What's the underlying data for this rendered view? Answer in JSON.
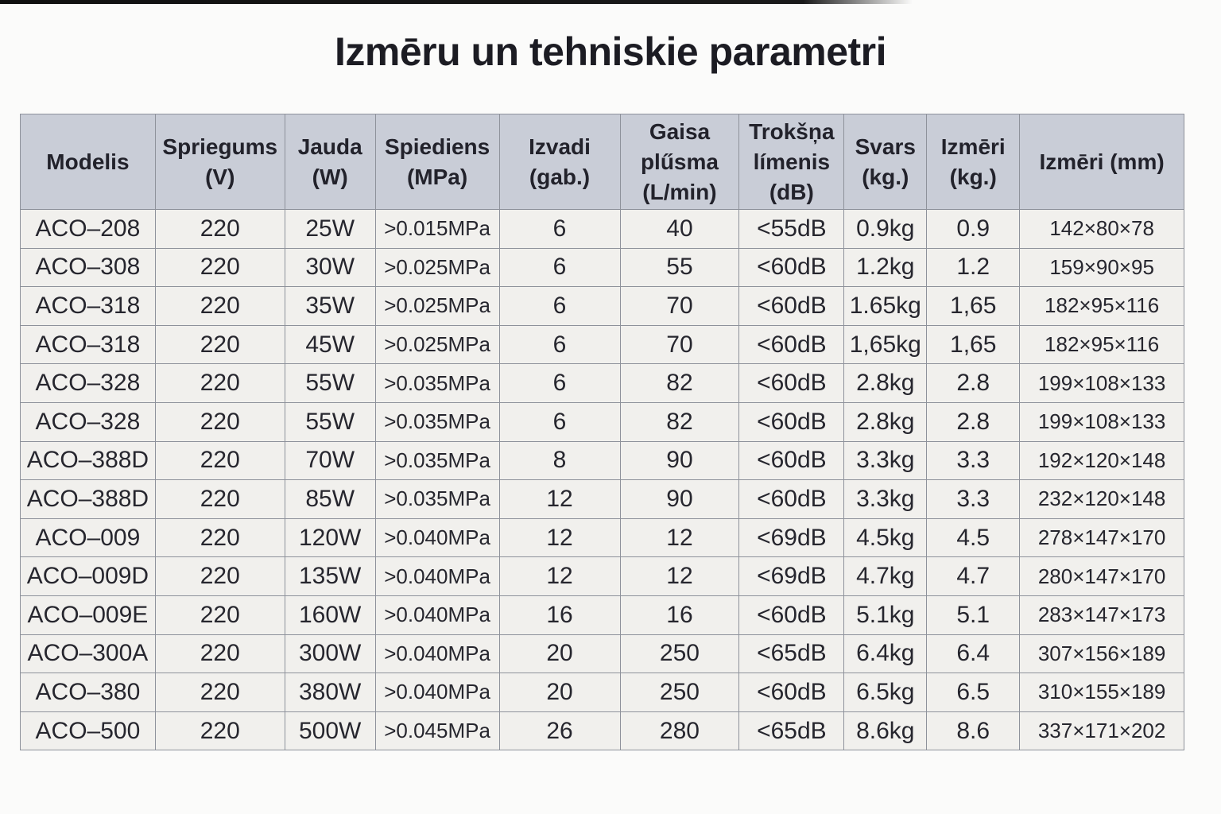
{
  "page": {
    "title": "Izmēru un tehniskie parametri"
  },
  "table": {
    "columns": [
      {
        "key": "modelis",
        "lines": [
          "Modelis"
        ]
      },
      {
        "key": "spriegums",
        "lines": [
          "Spriegums",
          "(V)"
        ]
      },
      {
        "key": "jauda",
        "lines": [
          "Jauda",
          "(W)"
        ]
      },
      {
        "key": "spiediens",
        "lines": [
          "Spiediens",
          "(MPa)"
        ]
      },
      {
        "key": "izvadi",
        "lines": [
          "Izvadi",
          "(gab.)"
        ]
      },
      {
        "key": "gaisa-plusma",
        "lines": [
          "Gaisa",
          "plűsma",
          "(L/min)"
        ]
      },
      {
        "key": "troksna-limenis",
        "lines": [
          "Trokšņa",
          "límenis",
          "(dB)"
        ]
      },
      {
        "key": "svars",
        "lines": [
          "Svars",
          "(kg.)"
        ]
      },
      {
        "key": "izmeri-kg",
        "lines": [
          "Izmēri",
          "(kg.)"
        ]
      },
      {
        "key": "izmeri-mm",
        "lines": [
          "Izmēri (mm)"
        ]
      }
    ],
    "rows": [
      [
        "ACO–208",
        "220",
        "25W",
        ">0.015MPa",
        "6",
        "40",
        "<55dB",
        "0.9kg",
        "0.9",
        "142×80×78"
      ],
      [
        "ACO–308",
        "220",
        "30W",
        ">0.025MPa",
        "6",
        "55",
        "<60dB",
        "1.2kg",
        "1.2",
        "159×90×95"
      ],
      [
        "ACO–318",
        "220",
        "35W",
        ">0.025MPa",
        "6",
        "70",
        "<60dB",
        "1.65kg",
        "1,65",
        "182×95×116"
      ],
      [
        "ACO–318",
        "220",
        "45W",
        ">0.025MPa",
        "6",
        "70",
        "<60dB",
        "1,65kg",
        "1,65",
        "182×95×116"
      ],
      [
        "ACO–328",
        "220",
        "55W",
        ">0.035MPa",
        "6",
        "82",
        "<60dB",
        "2.8kg",
        "2.8",
        "199×108×133"
      ],
      [
        "ACO–328",
        "220",
        "55W",
        ">0.035MPa",
        "6",
        "82",
        "<60dB",
        "2.8kg",
        "2.8",
        "199×108×133"
      ],
      [
        "ACO–388D",
        "220",
        "70W",
        ">0.035MPa",
        "8",
        "90",
        "<60dB",
        "3.3kg",
        "3.3",
        "192×120×148"
      ],
      [
        "ACO–388D",
        "220",
        "85W",
        ">0.035MPa",
        "12",
        "90",
        "<60dB",
        "3.3kg",
        "3.3",
        "232×120×148"
      ],
      [
        "ACO–009",
        "220",
        "120W",
        ">0.040MPa",
        "12",
        "12",
        "<69dB",
        "4.5kg",
        "4.5",
        "278×147×170"
      ],
      [
        "ACO–009D",
        "220",
        "135W",
        ">0.040MPa",
        "12",
        "12",
        "<69dB",
        "4.7kg",
        "4.7",
        "280×147×170"
      ],
      [
        "ACO–009E",
        "220",
        "160W",
        ">0.040MPa",
        "16",
        "16",
        "<60dB",
        "5.1kg",
        "5.1",
        "283×147×173"
      ],
      [
        "ACO–300A",
        "220",
        "300W",
        ">0.040MPa",
        "20",
        "250",
        "<65dB",
        "6.4kg",
        "6.4",
        "307×156×189"
      ],
      [
        "ACO–380",
        "220",
        "380W",
        ">0.040MPa",
        "20",
        "250",
        "<60dB",
        "6.5kg",
        "6.5",
        "310×155×189"
      ],
      [
        "ACO–500",
        "220",
        "500W",
        ">0.045MPa",
        "26",
        "280",
        "<65dB",
        "8.6kg",
        "8.6",
        "337×171×202"
      ]
    ]
  },
  "colors": {
    "header_bg": "#c9cdd7",
    "row_bg": "#f1f0ed",
    "border": "#8e929b",
    "text": "#26262e",
    "page_bg": "#fbfbfa"
  }
}
